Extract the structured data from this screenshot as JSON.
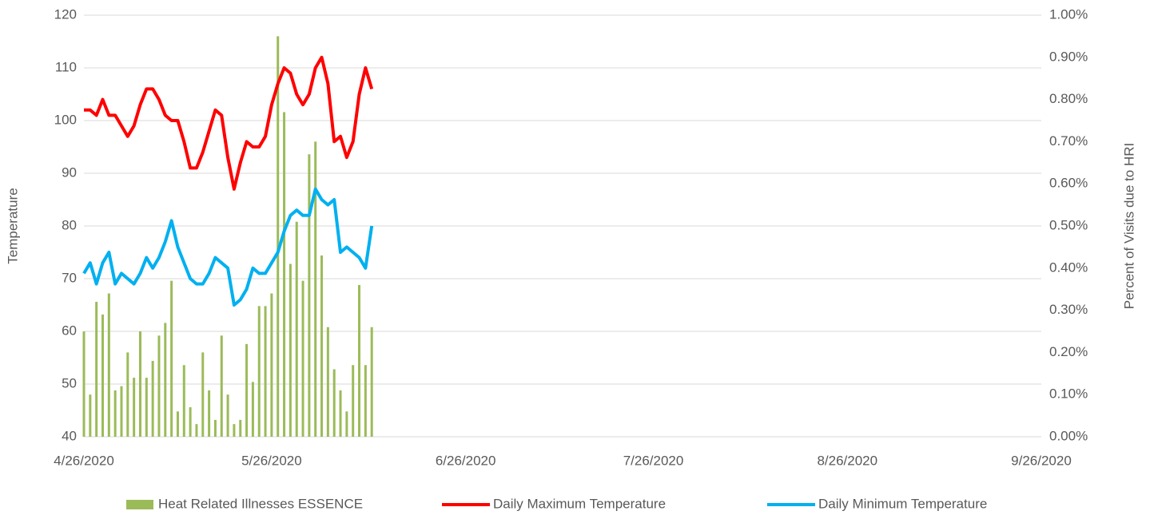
{
  "chart_data": {
    "type": "combo",
    "x": [
      "4/26/2020",
      "4/27/2020",
      "4/28/2020",
      "4/29/2020",
      "4/30/2020",
      "5/1/2020",
      "5/2/2020",
      "5/3/2020",
      "5/4/2020",
      "5/5/2020",
      "5/6/2020",
      "5/7/2020",
      "5/8/2020",
      "5/9/2020",
      "5/10/2020",
      "5/11/2020",
      "5/12/2020",
      "5/13/2020",
      "5/14/2020",
      "5/15/2020",
      "5/16/2020",
      "5/17/2020",
      "5/18/2020",
      "5/19/2020",
      "5/20/2020",
      "5/21/2020",
      "5/22/2020",
      "5/23/2020",
      "5/24/2020",
      "5/25/2020",
      "5/26/2020",
      "5/27/2020",
      "5/28/2020",
      "5/29/2020",
      "5/30/2020",
      "5/31/2020",
      "6/1/2020",
      "6/2/2020",
      "6/3/2020",
      "6/4/2020",
      "6/5/2020",
      "6/6/2020",
      "6/7/2020",
      "6/8/2020",
      "6/9/2020",
      "6/10/2020",
      "6/11/2020"
    ],
    "series": [
      {
        "name": "Heat Related Illnesses ESSENCE",
        "type": "bar",
        "axis": "y2",
        "color": "#9bbb59",
        "values": [
          0.25,
          0.1,
          0.32,
          0.29,
          0.34,
          0.11,
          0.12,
          0.2,
          0.14,
          0.25,
          0.14,
          0.18,
          0.24,
          0.27,
          0.37,
          0.06,
          0.17,
          0.07,
          0.03,
          0.2,
          0.11,
          0.04,
          0.24,
          0.1,
          0.03,
          0.04,
          0.22,
          0.13,
          0.31,
          0.31,
          0.34,
          0.95,
          0.77,
          0.41,
          0.51,
          0.37,
          0.67,
          0.7,
          0.43,
          0.26,
          0.16,
          0.11,
          0.06,
          0.17,
          0.36,
          0.17,
          0.26
        ]
      },
      {
        "name": "Daily Maximum Temperature",
        "type": "line",
        "color": "#ff0000",
        "values": [
          102,
          102,
          101,
          104,
          101,
          101,
          99,
          97,
          99,
          103,
          106,
          106,
          104,
          101,
          100,
          100,
          96,
          91,
          91,
          94,
          98,
          102,
          101,
          93,
          87,
          92,
          96,
          95,
          95,
          97,
          103,
          107,
          110,
          109,
          105,
          103,
          105,
          110,
          112,
          107,
          96,
          97,
          93,
          96,
          105,
          110,
          106
        ]
      },
      {
        "name": "Daily Minimum Temperature",
        "type": "line",
        "color": "#00b0f0",
        "values": [
          71,
          73,
          69,
          73,
          75,
          69,
          71,
          70,
          69,
          71,
          74,
          72,
          74,
          77,
          81,
          76,
          73,
          70,
          69,
          69,
          71,
          74,
          73,
          72,
          65,
          66,
          68,
          72,
          71,
          71,
          73,
          75,
          79,
          82,
          83,
          82,
          82,
          87,
          85,
          84,
          85,
          75,
          76,
          75,
          74,
          72,
          80
        ]
      }
    ],
    "ylabel": "Temperature",
    "y2label": "Percent of Visits due to HRI",
    "xlim": [
      "4/26/2020",
      "9/26/2020"
    ],
    "xticks": [
      "4/26/2020",
      "5/26/2020",
      "6/26/2020",
      "7/26/2020",
      "8/26/2020",
      "9/26/2020"
    ],
    "ylim": [
      40,
      120
    ],
    "yticks": [
      40,
      50,
      60,
      70,
      80,
      90,
      100,
      110,
      120
    ],
    "y2lim": [
      0,
      1
    ],
    "y2ticks": [
      {
        "value": 0,
        "label": "0.00%"
      },
      {
        "value": 0.1,
        "label": "0.10%"
      },
      {
        "value": 0.2,
        "label": "0.20%"
      },
      {
        "value": 0.3,
        "label": "0.30%"
      },
      {
        "value": 0.4,
        "label": "0.40%"
      },
      {
        "value": 0.5,
        "label": "0.50%"
      },
      {
        "value": 0.6,
        "label": "0.60%"
      },
      {
        "value": 0.7,
        "label": "0.70%"
      },
      {
        "value": 0.8,
        "label": "0.80%"
      },
      {
        "value": 0.9,
        "label": "0.90%"
      },
      {
        "value": 1,
        "label": "1.00%"
      }
    ],
    "grid": true,
    "legend": "bottom"
  }
}
